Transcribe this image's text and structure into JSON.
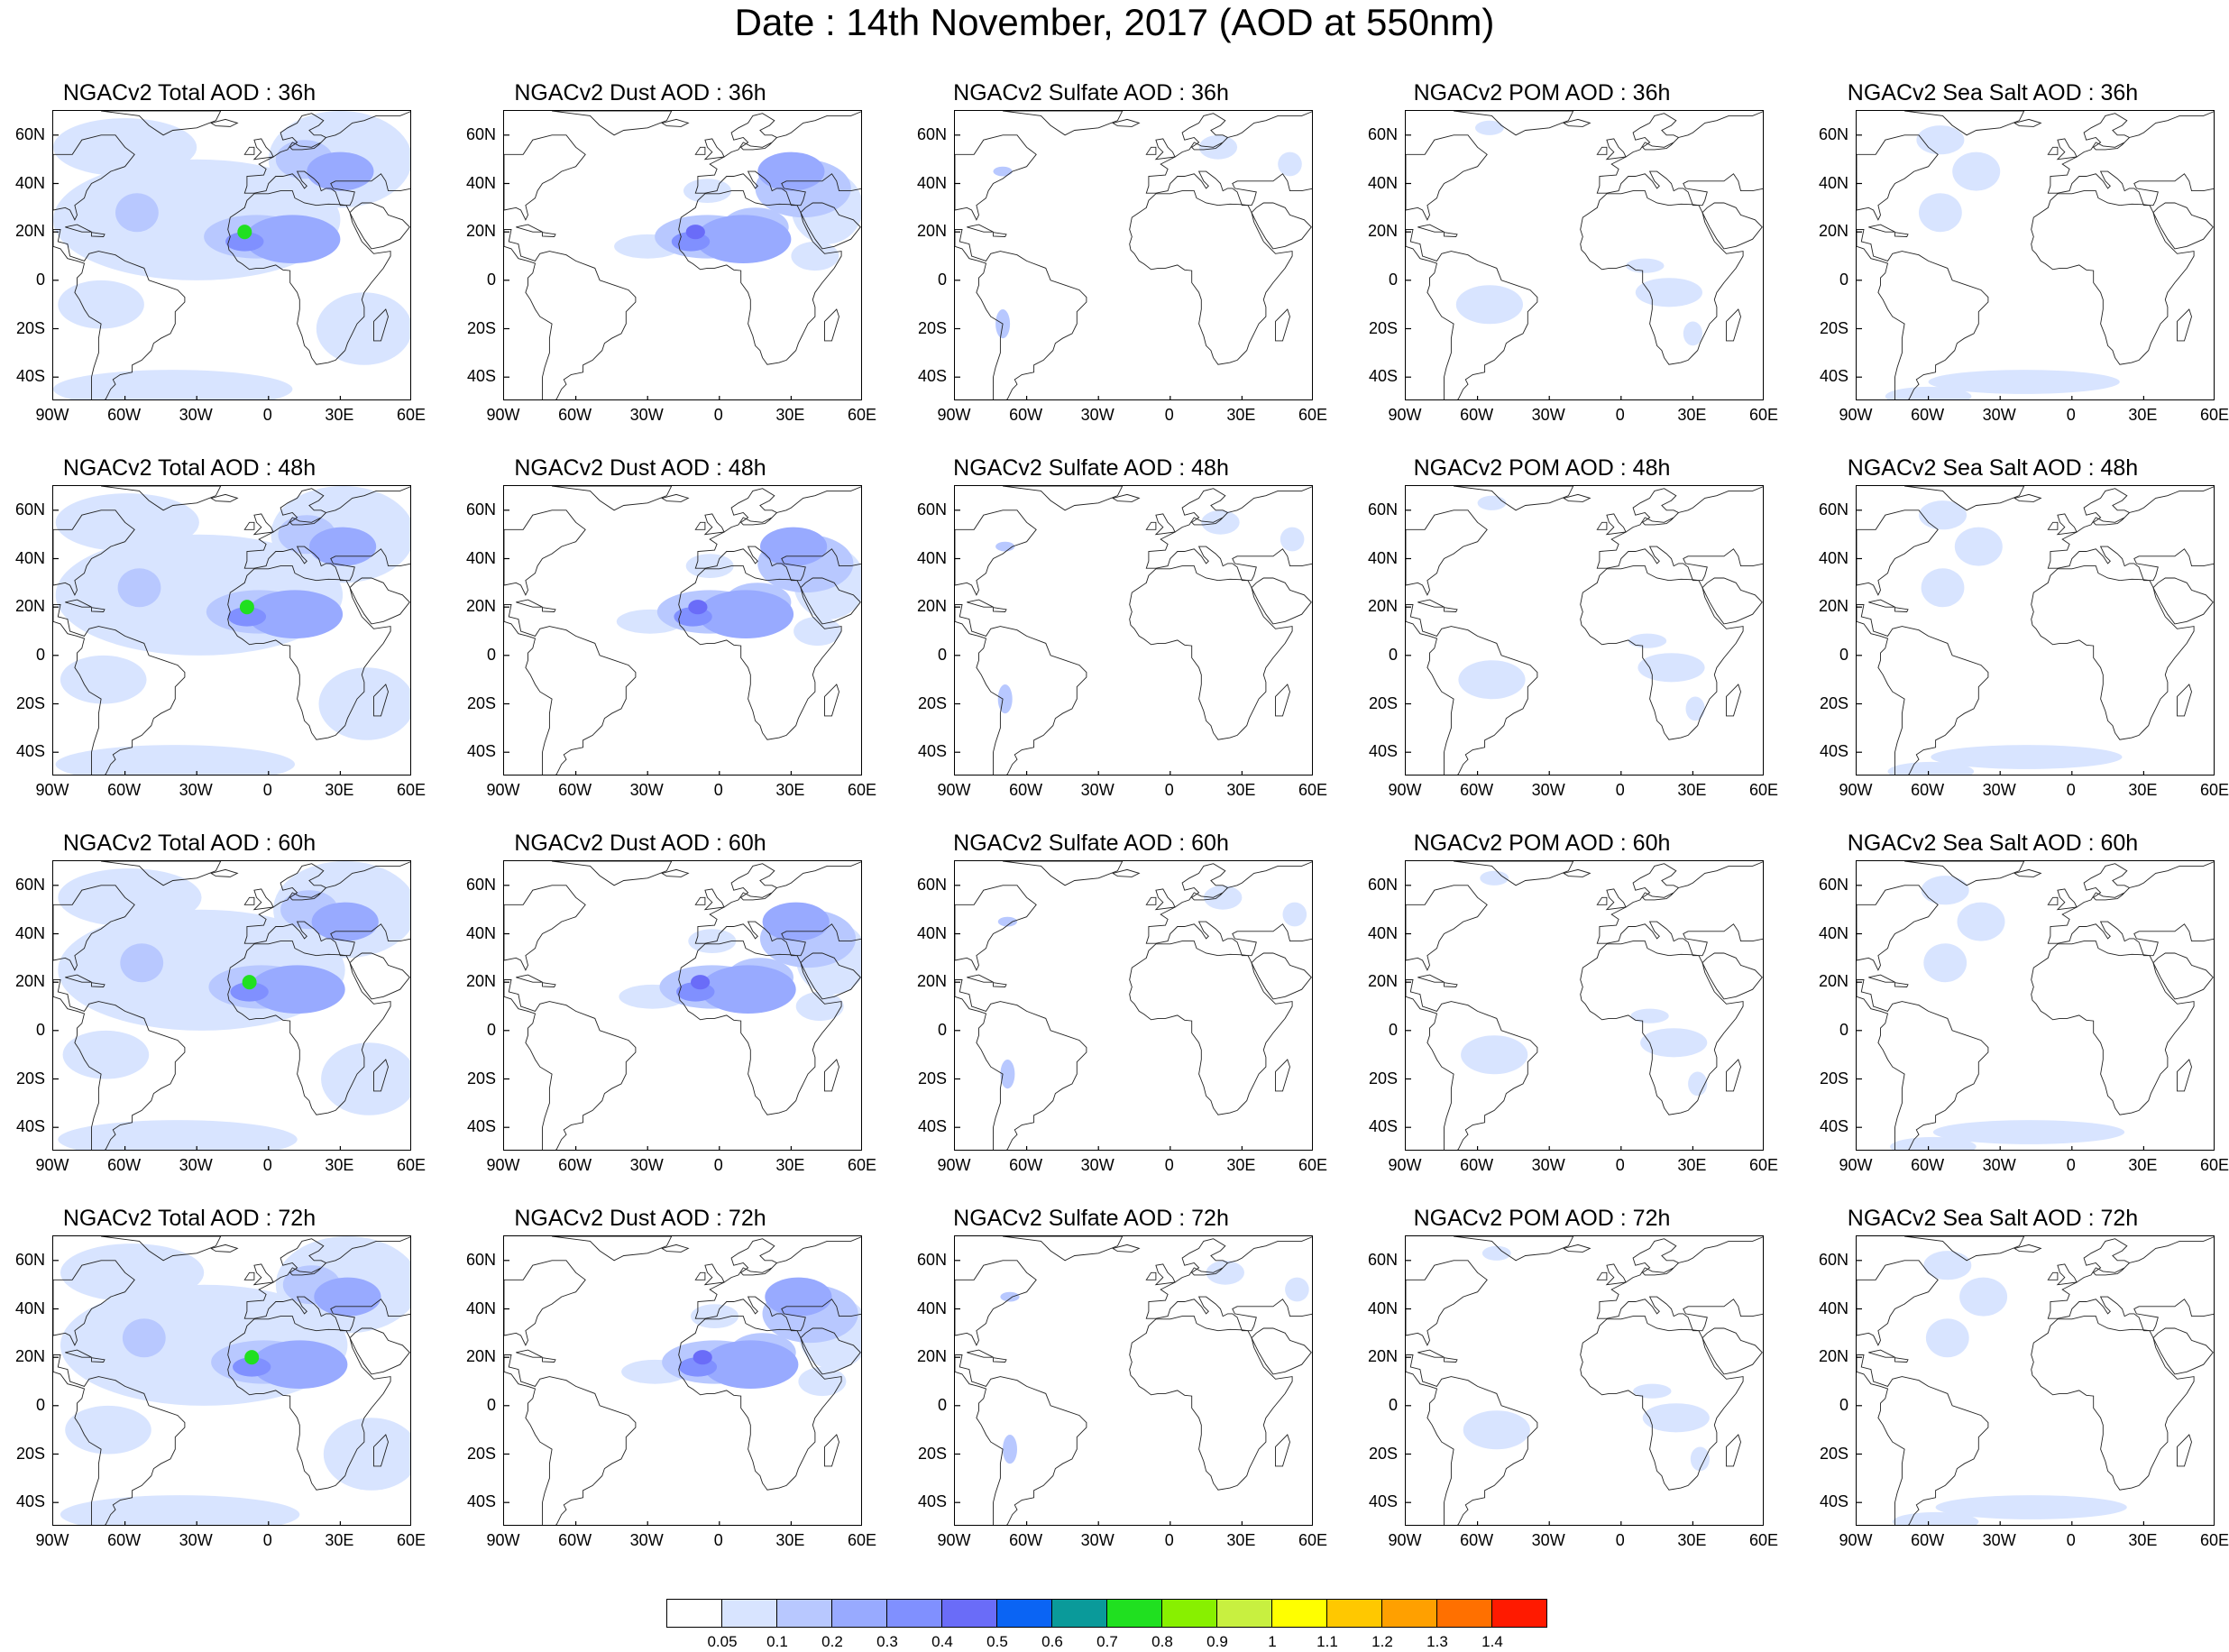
{
  "figure": {
    "title": "Date : 14th November, 2017 (AOD at 550nm)"
  },
  "axes": {
    "lon_ticks": [
      "90W",
      "60W",
      "30W",
      "0",
      "30E",
      "60E"
    ],
    "lat_ticks": [
      "60N",
      "40N",
      "20N",
      "0",
      "20S",
      "40S"
    ]
  },
  "rows": [
    {
      "hour": "36h",
      "panels": [
        {
          "title": "NGACv2 Total AOD : 36h",
          "species": "total"
        },
        {
          "title": "NGACv2 Dust AOD : 36h",
          "species": "dust"
        },
        {
          "title": "NGACv2 Sulfate AOD : 36h",
          "species": "sulfate"
        },
        {
          "title": "NGACv2 POM AOD : 36h",
          "species": "pom"
        },
        {
          "title": "NGACv2 Sea Salt AOD : 36h",
          "species": "seasalt"
        }
      ]
    },
    {
      "hour": "48h",
      "panels": [
        {
          "title": "NGACv2 Total AOD : 48h",
          "species": "total"
        },
        {
          "title": "NGACv2 Dust AOD : 48h",
          "species": "dust"
        },
        {
          "title": "NGACv2 Sulfate AOD : 48h",
          "species": "sulfate"
        },
        {
          "title": "NGACv2 POM AOD : 48h",
          "species": "pom"
        },
        {
          "title": "NGACv2 Sea Salt AOD : 48h",
          "species": "seasalt"
        }
      ]
    },
    {
      "hour": "60h",
      "panels": [
        {
          "title": "NGACv2 Total AOD : 60h",
          "species": "total"
        },
        {
          "title": "NGACv2 Dust AOD : 60h",
          "species": "dust"
        },
        {
          "title": "NGACv2 Sulfate AOD : 60h",
          "species": "sulfate"
        },
        {
          "title": "NGACv2 POM AOD : 60h",
          "species": "pom"
        },
        {
          "title": "NGACv2 Sea Salt AOD : 60h",
          "species": "seasalt"
        }
      ]
    },
    {
      "hour": "72h",
      "panels": [
        {
          "title": "NGACv2 Total AOD : 72h",
          "species": "total"
        },
        {
          "title": "NGACv2 Dust AOD : 72h",
          "species": "dust"
        },
        {
          "title": "NGACv2 Sulfate AOD : 72h",
          "species": "sulfate"
        },
        {
          "title": "NGACv2 POM AOD : 72h",
          "species": "pom"
        },
        {
          "title": "NGACv2 Sea Salt  AOD : 72h",
          "species": "seasalt"
        }
      ]
    }
  ],
  "colorbar": {
    "colors": [
      "#ffffff",
      "#d8e4ff",
      "#b8c8ff",
      "#98aaff",
      "#8090ff",
      "#6a6cf8",
      "#0a64f4",
      "#0a9a9a",
      "#20e020",
      "#88f000",
      "#c8f040",
      "#ffff00",
      "#ffc800",
      "#ffa000",
      "#ff7000",
      "#ff1a00"
    ],
    "labels": [
      "0.05",
      "0.1",
      "0.2",
      "0.3",
      "0.4",
      "0.5",
      "0.6",
      "0.7",
      "0.8",
      "0.9",
      "1",
      "1.1",
      "1.2",
      "1.3",
      "1.4"
    ]
  }
}
